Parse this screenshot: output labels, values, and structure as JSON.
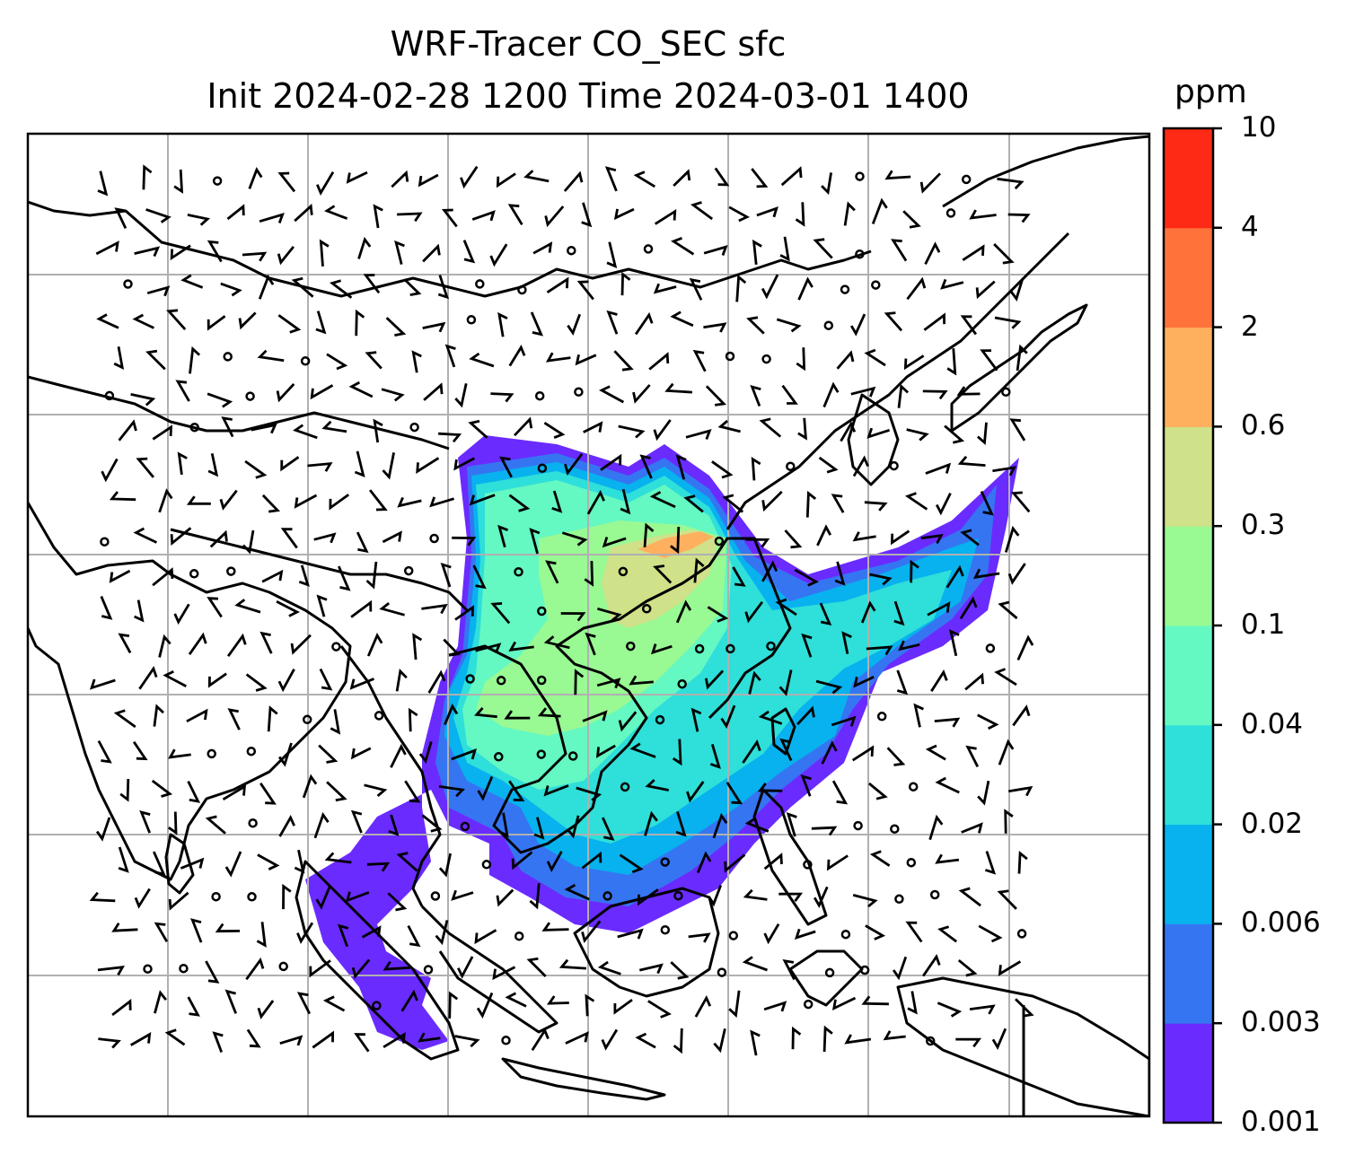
{
  "figure": {
    "title_line1": "WRF-Tracer CO_SEC sfc",
    "title_line2": "Init 2024-02-28 1200 Time 2024-03-01 1400"
  },
  "colorbar": {
    "unit": "ppm",
    "levels": [
      "0.001",
      "0.003",
      "0.006",
      "0.02",
      "0.04",
      "0.1",
      "0.3",
      "0.6",
      "2",
      "4",
      "10"
    ],
    "colors": [
      "#6a2bff",
      "#3575f2",
      "#07b2ee",
      "#2fdfd9",
      "#64f8c3",
      "#99f993",
      "#cfe189",
      "#feb05f",
      "#ff733a",
      "#ff2a16"
    ]
  },
  "map": {
    "field": "CO_SEC surface tracer concentration",
    "wind_barbs": true,
    "gridlines": true,
    "coastline_color": "#000000",
    "grid_color": "#b0b0b0"
  }
}
